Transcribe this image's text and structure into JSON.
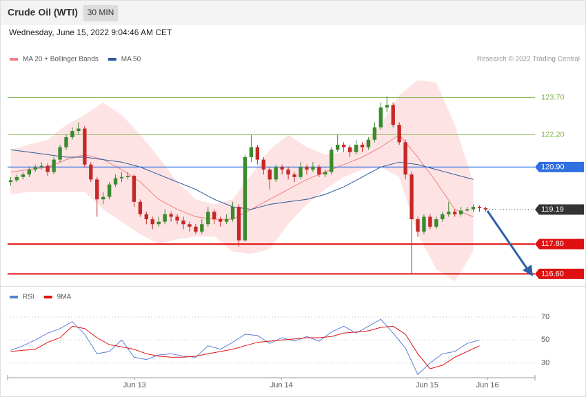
{
  "header": {
    "title": "Crude Oil (WTI)",
    "interval": "30 MIN",
    "timestamp": "Wednesday, June 15, 2022 9:04:46 AM CET"
  },
  "chart_data": [
    {
      "type": "candlestick",
      "credit": "Research © 2022 Trading Central",
      "xlim": [
        -0.5,
        85
      ],
      "ylim": [
        116.25,
        124.85
      ],
      "xticks": [
        {
          "value": 20.1,
          "label": "Jun 13"
        },
        {
          "value": 43.9,
          "label": "Jun 14"
        },
        {
          "value": 67.5,
          "label": "Jun 15"
        },
        {
          "value": 77.3,
          "label": "Jun 16"
        }
      ],
      "up_color": "#3a8a2e",
      "down_color": "#c62828",
      "x": [
        0,
        1,
        2,
        3,
        4,
        5,
        6,
        7,
        8,
        9,
        10,
        11,
        12,
        13,
        14,
        15,
        16,
        17,
        18,
        19,
        20,
        21,
        22,
        23,
        24,
        25,
        26,
        27,
        28,
        29,
        30,
        31,
        32,
        33,
        34,
        35,
        36,
        37,
        38,
        39,
        40,
        41,
        42,
        43,
        44,
        45,
        46,
        47,
        48,
        49,
        50,
        51,
        52,
        53,
        54,
        55,
        56,
        57,
        58,
        59,
        60,
        61,
        62,
        63,
        64,
        65,
        66,
        67,
        68,
        69,
        70,
        71,
        72,
        73,
        74,
        75,
        76,
        77
      ],
      "candles": [
        [
          120.3,
          120.5,
          120.15,
          120.37
        ],
        [
          120.37,
          120.6,
          120.3,
          120.5
        ],
        [
          120.5,
          120.7,
          120.4,
          120.6
        ],
        [
          120.6,
          120.9,
          120.5,
          120.8
        ],
        [
          120.8,
          121.0,
          120.7,
          120.9
        ],
        [
          120.9,
          121.1,
          120.8,
          120.95
        ],
        [
          120.95,
          121.05,
          120.55,
          120.7
        ],
        [
          120.7,
          121.3,
          120.6,
          121.2
        ],
        [
          121.2,
          121.8,
          121.1,
          121.7
        ],
        [
          121.7,
          122.2,
          121.6,
          122.1
        ],
        [
          122.1,
          122.5,
          122.0,
          122.35
        ],
        [
          122.35,
          122.7,
          122.2,
          122.45
        ],
        [
          122.45,
          122.55,
          120.9,
          121.0
        ],
        [
          121.0,
          121.1,
          120.3,
          120.4
        ],
        [
          120.4,
          120.5,
          118.9,
          119.6
        ],
        [
          119.6,
          119.9,
          119.4,
          119.7
        ],
        [
          119.7,
          120.3,
          119.6,
          120.2
        ],
        [
          120.2,
          120.6,
          120.1,
          120.45
        ],
        [
          120.45,
          120.7,
          120.3,
          120.5
        ],
        [
          120.5,
          120.7,
          120.4,
          120.55
        ],
        [
          120.55,
          120.6,
          119.3,
          119.5
        ],
        [
          119.5,
          119.6,
          118.9,
          119.0
        ],
        [
          119.0,
          119.1,
          118.6,
          118.8
        ],
        [
          118.8,
          118.9,
          118.4,
          118.6
        ],
        [
          118.6,
          118.9,
          118.5,
          118.7
        ],
        [
          118.7,
          119.2,
          118.6,
          119.0
        ],
        [
          119.0,
          119.1,
          118.7,
          118.9
        ],
        [
          118.9,
          119.0,
          118.6,
          118.75
        ],
        [
          118.75,
          118.9,
          118.4,
          118.6
        ],
        [
          118.6,
          118.7,
          118.3,
          118.5
        ],
        [
          118.5,
          118.6,
          118.2,
          118.3
        ],
        [
          118.3,
          118.8,
          118.2,
          118.6
        ],
        [
          118.6,
          119.3,
          118.5,
          119.1
        ],
        [
          119.1,
          119.2,
          118.6,
          118.8
        ],
        [
          118.8,
          118.9,
          118.5,
          118.7
        ],
        [
          118.7,
          119.0,
          118.6,
          118.8
        ],
        [
          118.8,
          119.5,
          118.7,
          119.3
        ],
        [
          119.3,
          119.4,
          117.7,
          117.95
        ],
        [
          117.95,
          121.4,
          117.9,
          121.3
        ],
        [
          121.3,
          122.2,
          121.1,
          121.7
        ],
        [
          121.7,
          121.8,
          121.0,
          121.2
        ],
        [
          121.2,
          121.3,
          120.6,
          120.8
        ],
        [
          120.8,
          120.9,
          120.0,
          120.4
        ],
        [
          120.4,
          121.0,
          120.3,
          120.9
        ],
        [
          120.9,
          121.0,
          120.6,
          120.8
        ],
        [
          120.8,
          120.9,
          120.4,
          120.6
        ],
        [
          120.6,
          120.7,
          120.3,
          120.5
        ],
        [
          120.5,
          121.1,
          120.4,
          120.9
        ],
        [
          120.9,
          121.0,
          120.6,
          120.8
        ],
        [
          120.8,
          121.1,
          120.7,
          120.9
        ],
        [
          120.9,
          121.0,
          120.5,
          120.6
        ],
        [
          120.6,
          120.8,
          120.5,
          120.7
        ],
        [
          120.7,
          121.7,
          120.6,
          121.6
        ],
        [
          121.6,
          122.2,
          121.5,
          121.8
        ],
        [
          121.8,
          121.9,
          121.5,
          121.7
        ],
        [
          121.7,
          121.8,
          121.3,
          121.5
        ],
        [
          121.5,
          122.0,
          121.4,
          121.8
        ],
        [
          121.8,
          121.9,
          121.5,
          121.7
        ],
        [
          121.7,
          122.1,
          121.6,
          122.0
        ],
        [
          122.0,
          122.7,
          121.9,
          122.5
        ],
        [
          122.5,
          123.5,
          122.4,
          123.3
        ],
        [
          123.3,
          123.75,
          123.1,
          123.4
        ],
        [
          123.4,
          123.5,
          122.5,
          122.6
        ],
        [
          122.6,
          122.7,
          121.8,
          121.9
        ],
        [
          121.9,
          122.0,
          120.4,
          120.6
        ],
        [
          120.6,
          120.7,
          116.6,
          118.8
        ],
        [
          118.8,
          118.9,
          118.1,
          118.3
        ],
        [
          118.3,
          119.0,
          118.2,
          118.9
        ],
        [
          118.9,
          119.0,
          118.4,
          118.5
        ],
        [
          118.5,
          118.9,
          118.4,
          118.8
        ],
        [
          118.8,
          119.1,
          118.7,
          119.0
        ],
        [
          119.0,
          119.5,
          118.9,
          119.1
        ],
        [
          119.1,
          119.2,
          118.9,
          119.0
        ],
        [
          119.0,
          119.3,
          118.9,
          119.15
        ],
        [
          119.15,
          119.3,
          119.1,
          119.2
        ],
        [
          119.2,
          119.4,
          119.1,
          119.3
        ],
        [
          119.3,
          119.35,
          119.1,
          119.25
        ],
        [
          119.25,
          119.3,
          119.1,
          119.19
        ]
      ],
      "overlays": [
        {
          "name": "MA 20 + Bollinger Bands",
          "color": "#f28080",
          "band_color": "#fde3e3",
          "x": [
            0,
            3,
            6,
            9,
            12,
            15,
            18,
            21,
            24,
            27,
            30,
            33,
            36,
            39,
            42,
            45,
            48,
            51,
            54,
            57,
            60,
            63,
            66,
            69,
            72,
            75
          ],
          "values": [
            120.7,
            120.8,
            120.9,
            121.2,
            121.4,
            121.2,
            120.8,
            120.3,
            119.6,
            119.2,
            118.9,
            118.8,
            118.8,
            119.2,
            119.6,
            120.0,
            120.4,
            120.7,
            121.0,
            121.3,
            121.7,
            122.2,
            121.3,
            120.3,
            119.2,
            118.9
          ],
          "upper": [
            121.6,
            121.8,
            122.0,
            122.6,
            123.0,
            123.5,
            123.0,
            122.2,
            121.3,
            120.3,
            119.6,
            119.4,
            119.6,
            120.6,
            121.6,
            122.2,
            121.7,
            121.4,
            121.5,
            121.8,
            122.6,
            123.8,
            124.4,
            124.3,
            122.6,
            120.3
          ],
          "lower": [
            119.8,
            119.9,
            119.9,
            119.9,
            119.9,
            119.2,
            118.7,
            118.2,
            117.8,
            118.0,
            118.1,
            118.1,
            117.5,
            117.4,
            117.6,
            118.6,
            119.4,
            120.0,
            120.5,
            120.8,
            120.9,
            120.5,
            118.2,
            116.8,
            116.3,
            117.5
          ]
        },
        {
          "name": "MA 50",
          "color": "#2e5a9c",
          "x": [
            0,
            3,
            6,
            9,
            12,
            15,
            18,
            21,
            24,
            27,
            30,
            33,
            36,
            39,
            42,
            45,
            48,
            51,
            54,
            57,
            60,
            63,
            66,
            69,
            72,
            75
          ],
          "values": [
            121.6,
            121.5,
            121.4,
            121.3,
            121.3,
            121.2,
            121.1,
            120.9,
            120.6,
            120.3,
            120.0,
            119.6,
            119.3,
            119.2,
            119.4,
            119.5,
            119.6,
            119.8,
            120.1,
            120.5,
            120.9,
            121.1,
            121.0,
            120.8,
            120.6,
            120.4
          ]
        }
      ],
      "levels": [
        {
          "value": 123.7,
          "label": "123.70",
          "color": "#7cb342",
          "kind": "line"
        },
        {
          "value": 122.2,
          "label": "122.20",
          "color": "#7cb342",
          "kind": "line"
        },
        {
          "value": 120.9,
          "label": "120.90",
          "color": "#2f6fe0",
          "kind": "badge"
        },
        {
          "value": 119.19,
          "label": "119.19",
          "color": "#333333",
          "kind": "last"
        },
        {
          "value": 117.8,
          "label": "117.80",
          "color": "#e01010",
          "kind": "badge"
        },
        {
          "value": 116.6,
          "label": "116.60",
          "color": "#e01010",
          "kind": "badge"
        }
      ]
    },
    {
      "type": "line",
      "xlim": [
        -0.5,
        85
      ],
      "ylim": [
        19,
        79
      ],
      "yticks": [
        70,
        50,
        30
      ],
      "x": [
        0,
        2,
        4,
        6,
        8,
        10,
        12,
        14,
        16,
        18,
        20,
        22,
        24,
        26,
        28,
        30,
        32,
        34,
        36,
        38,
        40,
        42,
        44,
        46,
        48,
        50,
        52,
        54,
        56,
        58,
        60,
        62,
        64,
        66,
        68,
        70,
        72,
        74,
        76
      ],
      "series": [
        {
          "name": "RSI",
          "color": "#5b7fd6",
          "values": [
            41,
            45,
            50,
            56,
            60,
            66,
            55,
            38,
            40,
            50,
            35,
            33,
            37,
            38,
            36,
            35,
            45,
            42,
            48,
            55,
            54,
            47,
            52,
            49,
            53,
            49,
            57,
            62,
            56,
            62,
            68,
            56,
            43,
            20,
            30,
            38,
            40,
            47,
            50
          ]
        },
        {
          "name": "9MA",
          "color": "#e01010",
          "values": [
            40,
            41,
            42,
            48,
            52,
            62,
            60,
            52,
            46,
            44,
            42,
            38,
            36,
            35,
            35,
            36,
            38,
            40,
            42,
            45,
            48,
            49,
            50,
            51,
            52,
            52,
            53,
            56,
            57,
            58,
            61,
            62,
            55,
            38,
            25,
            28,
            35,
            40,
            45
          ]
        }
      ]
    }
  ]
}
